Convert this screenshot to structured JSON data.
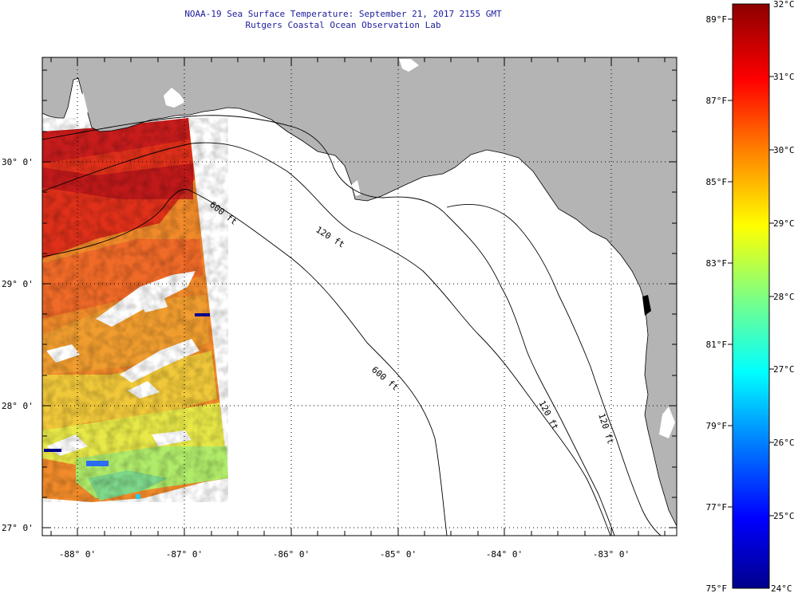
{
  "title": {
    "line1": "NOAA-19 Sea Surface Temperature:  September 21, 2017 2155 GMT",
    "line2": "Rutgers Coastal Ocean Observation Lab"
  },
  "map": {
    "lat_labels": [
      "30° 0'",
      "29° 0'",
      "28° 0'",
      "27° 0'"
    ],
    "lon_labels": [
      "-88° 0'",
      "-87° 0'",
      "-86° 0'",
      "-85° 0'",
      "-84° 0'",
      "-83° 0'"
    ],
    "contour_labels": [
      "600 ft",
      "120 ft",
      "600 ft",
      "120 ft",
      "120 ft"
    ],
    "colors": {
      "land": "#b4b4b4",
      "ocean": "#ffffff",
      "title": "#1c1c9c"
    }
  },
  "colorbar": {
    "fahrenheit_labels": [
      "89°F",
      "87°F",
      "85°F",
      "83°F",
      "81°F",
      "79°F",
      "77°F",
      "75°F"
    ],
    "celsius_labels": [
      "32°C",
      "31°C",
      "30°C",
      "29°C",
      "28°C",
      "27°C",
      "26°C",
      "25°C",
      "24°C"
    ],
    "colors": [
      "#00008c",
      "#0000ff",
      "#0080ff",
      "#00ffff",
      "#80ff80",
      "#ffff00",
      "#ff8000",
      "#ff0000",
      "#8c0000"
    ]
  }
}
